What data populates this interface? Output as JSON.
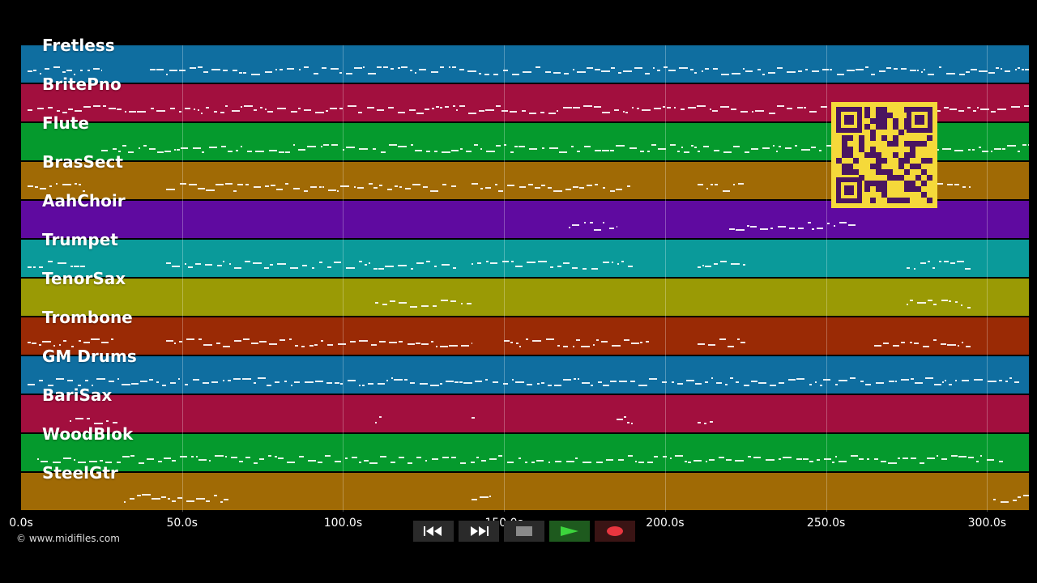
{
  "tracks": [
    {
      "name": "Fretless",
      "color": "#0f6ea0"
    },
    {
      "name": "BritePno",
      "color": "#a20f3e"
    },
    {
      "name": "Flute",
      "color": "#059a2d"
    },
    {
      "name": "BrasSect",
      "color": "#a06a05"
    },
    {
      "name": "AahChoir",
      "color": "#5f0aa0"
    },
    {
      "name": "Trumpet",
      "color": "#0a9a9a"
    },
    {
      "name": "TenorSax",
      "color": "#9a9a05"
    },
    {
      "name": "Trombone",
      "color": "#9a2a05"
    },
    {
      "name": "GM Drums",
      "color": "#0f6ea0"
    },
    {
      "name": "BariSax",
      "color": "#a20f3e"
    },
    {
      "name": "WoodBlok",
      "color": "#059a2d"
    },
    {
      "name": "SteelGtr",
      "color": "#a06a05"
    }
  ],
  "timeline": {
    "ticks": [
      "0.0s",
      "50.0s",
      "100.0s",
      "150.0s",
      "200.0s",
      "250.0s",
      "300.0s"
    ],
    "tick_seconds": [
      0,
      50,
      100,
      150,
      200,
      250,
      300
    ],
    "max_seconds": 313
  },
  "controls": {
    "rewind": "rewind-icon",
    "fast_forward": "fast-forward-icon",
    "stop": "stop-icon",
    "play": "play-icon",
    "record": "record-icon",
    "play_color": "#3cd43c",
    "record_color": "#e8363f"
  },
  "credit": "© www.midifiles.com"
}
